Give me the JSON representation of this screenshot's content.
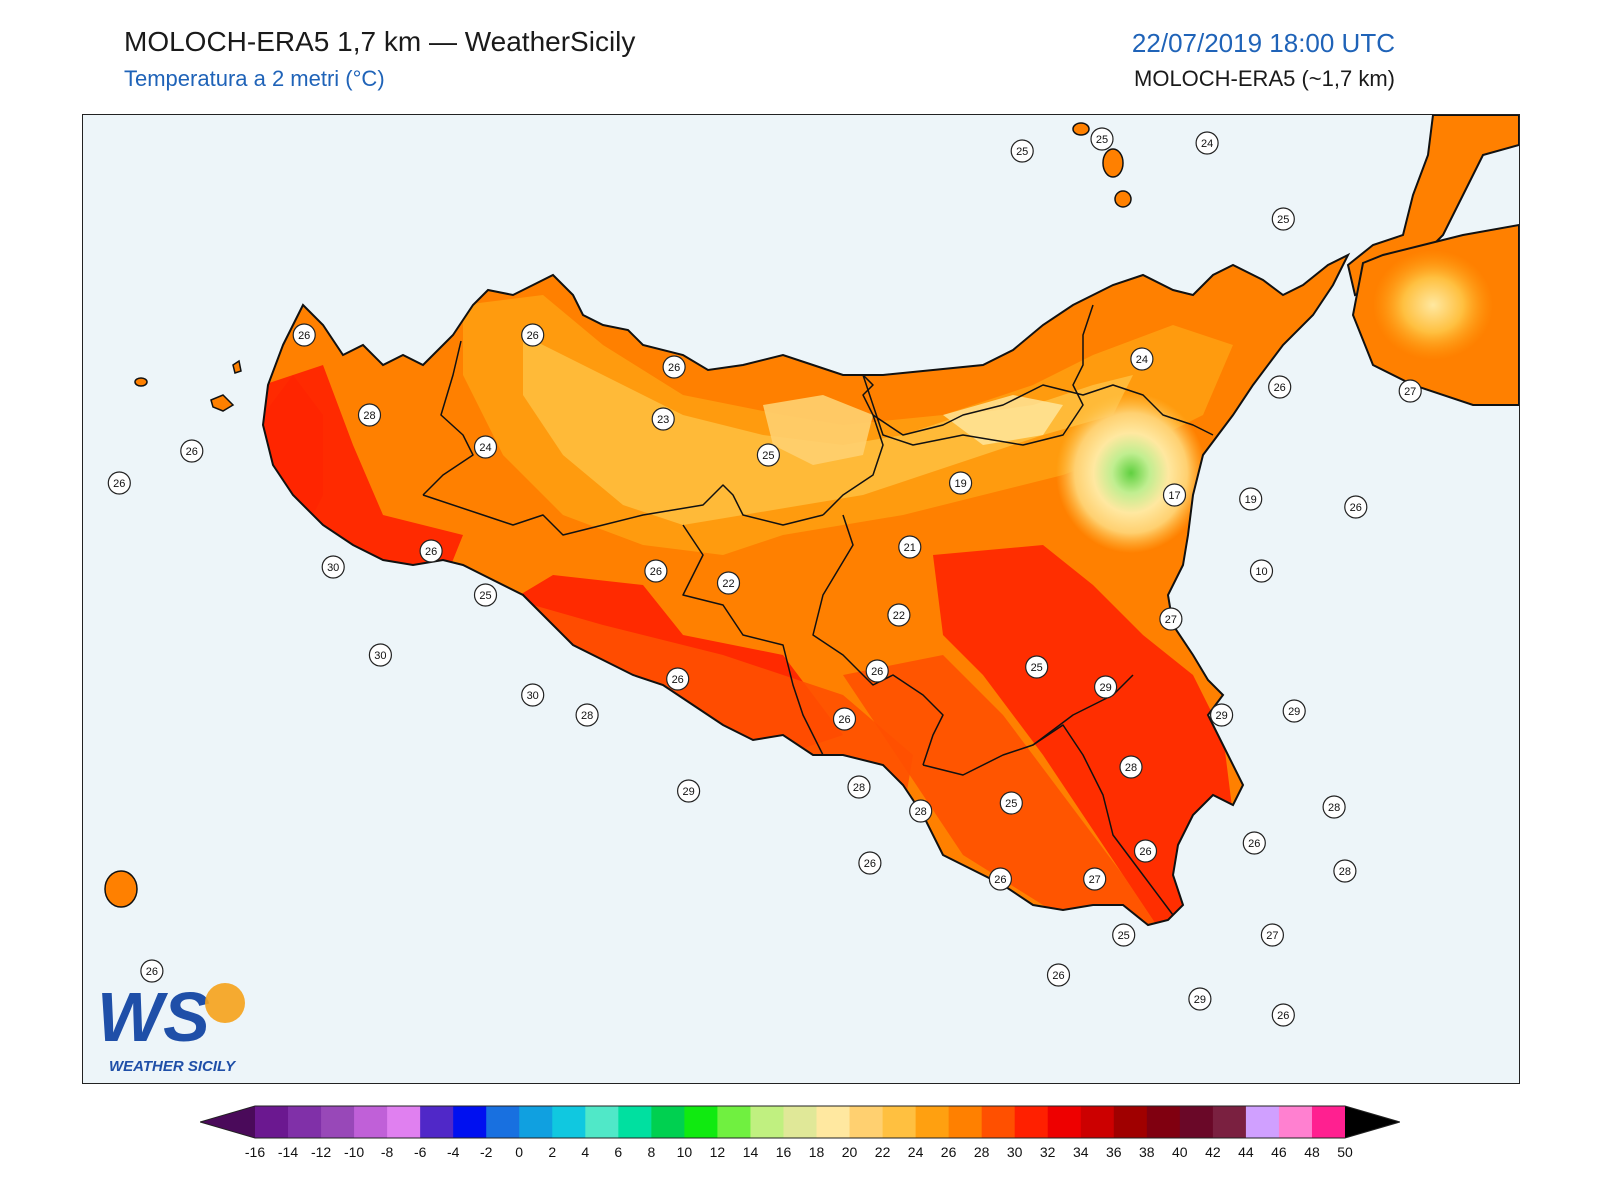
{
  "header": {
    "title": "MOLOCH-ERA5 1,7 km — WeatherSicily",
    "subtitle": "Temperatura a 2 metri (°C)",
    "datetime": "22/07/2019 18:00 UTC",
    "model": "MOLOCH-ERA5 (~1,7 km)"
  },
  "logo": {
    "letters": "WS",
    "text": "WEATHER SICILY"
  },
  "colorbar": {
    "labels": [
      "-16",
      "-14",
      "-12",
      "-10",
      "-8",
      "-6",
      "-4",
      "-2",
      "0",
      "2",
      "4",
      "6",
      "8",
      "10",
      "12",
      "14",
      "16",
      "18",
      "20",
      "22",
      "24",
      "26",
      "28",
      "30",
      "32",
      "34",
      "36",
      "38",
      "40",
      "42",
      "44",
      "46",
      "48",
      "50"
    ],
    "colors": [
      "#4a0a5a",
      "#6b1890",
      "#8030a8",
      "#9848b8",
      "#c060d8",
      "#e080f0",
      "#5028c8",
      "#0010f0",
      "#1870e0",
      "#10a0e0",
      "#10c8e0",
      "#50e8c8",
      "#00e0a0",
      "#00d050",
      "#10ea10",
      "#70f040",
      "#c0f080",
      "#e0e898",
      "#ffe8a0",
      "#ffd070",
      "#ffc040",
      "#ffa010",
      "#ff8000",
      "#ff5000",
      "#ff2000",
      "#ee0000",
      "#cc0000",
      "#a00000",
      "#800010",
      "#6a0828",
      "#7a2040",
      "#d0a0ff",
      "#ff80d0",
      "#ff2090",
      "#808080",
      "#404040"
    ]
  },
  "stations": [
    {
      "value": "25",
      "lon": 14.35,
      "lat": 38.78
    },
    {
      "value": "25",
      "lon": 14.57,
      "lat": 38.81
    },
    {
      "value": "24",
      "lon": 14.86,
      "lat": 38.8
    },
    {
      "value": "25",
      "lon": 15.07,
      "lat": 38.61
    },
    {
      "value": "26",
      "lon": 12.37,
      "lat": 38.32
    },
    {
      "value": "26",
      "lon": 13.0,
      "lat": 38.32
    },
    {
      "value": "26",
      "lon": 13.39,
      "lat": 38.24
    },
    {
      "value": "26",
      "lon": 12.06,
      "lat": 38.03
    },
    {
      "value": "28",
      "lon": 12.55,
      "lat": 38.12
    },
    {
      "value": "24",
      "lon": 12.87,
      "lat": 38.04
    },
    {
      "value": "26",
      "lon": 11.86,
      "lat": 37.95
    },
    {
      "value": "23",
      "lon": 13.36,
      "lat": 38.11
    },
    {
      "value": "25",
      "lon": 13.65,
      "lat": 38.02
    },
    {
      "value": "19",
      "lon": 14.18,
      "lat": 37.95
    },
    {
      "value": "24",
      "lon": 14.68,
      "lat": 38.26
    },
    {
      "value": "26",
      "lon": 15.06,
      "lat": 38.19
    },
    {
      "value": "27",
      "lon": 15.42,
      "lat": 38.18
    },
    {
      "value": "17",
      "lon": 14.77,
      "lat": 37.92
    },
    {
      "value": "19",
      "lon": 14.98,
      "lat": 37.91
    },
    {
      "value": "26",
      "lon": 12.72,
      "lat": 37.78
    },
    {
      "value": "26",
      "lon": 13.34,
      "lat": 37.73
    },
    {
      "value": "22",
      "lon": 13.54,
      "lat": 37.7
    },
    {
      "value": "21",
      "lon": 14.04,
      "lat": 37.79
    },
    {
      "value": "26",
      "lon": 15.27,
      "lat": 37.89
    },
    {
      "value": "10",
      "lon": 15.01,
      "lat": 37.73
    },
    {
      "value": "30",
      "lon": 12.45,
      "lat": 37.74
    },
    {
      "value": "25",
      "lon": 12.87,
      "lat": 37.67
    },
    {
      "value": "22",
      "lon": 14.01,
      "lat": 37.62
    },
    {
      "value": "27",
      "lon": 14.76,
      "lat": 37.61
    },
    {
      "value": "30",
      "lon": 12.58,
      "lat": 37.52
    },
    {
      "value": "30",
      "lon": 13.0,
      "lat": 37.42
    },
    {
      "value": "26",
      "lon": 13.4,
      "lat": 37.46
    },
    {
      "value": "26",
      "lon": 13.95,
      "lat": 37.48
    },
    {
      "value": "25",
      "lon": 14.39,
      "lat": 37.49
    },
    {
      "value": "29",
      "lon": 14.58,
      "lat": 37.44
    },
    {
      "value": "29",
      "lon": 14.9,
      "lat": 37.37
    },
    {
      "value": "29",
      "lon": 15.1,
      "lat": 37.38
    },
    {
      "value": "28",
      "lon": 13.15,
      "lat": 37.37
    },
    {
      "value": "26",
      "lon": 13.86,
      "lat": 37.36
    },
    {
      "value": "28",
      "lon": 14.65,
      "lat": 37.24
    },
    {
      "value": "29",
      "lon": 13.43,
      "lat": 37.18
    },
    {
      "value": "28",
      "lon": 13.9,
      "lat": 37.19
    },
    {
      "value": "28",
      "lon": 14.07,
      "lat": 37.13
    },
    {
      "value": "25",
      "lon": 14.32,
      "lat": 37.15
    },
    {
      "value": "28",
      "lon": 15.21,
      "lat": 37.14
    },
    {
      "value": "26",
      "lon": 14.99,
      "lat": 37.05
    },
    {
      "value": "26",
      "lon": 14.69,
      "lat": 37.03
    },
    {
      "value": "26",
      "lon": 13.93,
      "lat": 37.0
    },
    {
      "value": "26",
      "lon": 14.29,
      "lat": 36.96
    },
    {
      "value": "27",
      "lon": 14.55,
      "lat": 36.96
    },
    {
      "value": "28",
      "lon": 15.24,
      "lat": 36.98
    },
    {
      "value": "25",
      "lon": 14.63,
      "lat": 36.82
    },
    {
      "value": "27",
      "lon": 15.04,
      "lat": 36.82
    },
    {
      "value": "26",
      "lon": 14.45,
      "lat": 36.72
    },
    {
      "value": "29",
      "lon": 14.84,
      "lat": 36.66
    },
    {
      "value": "26",
      "lon": 15.07,
      "lat": 36.62
    },
    {
      "value": "26",
      "lon": 11.95,
      "lat": 36.73
    }
  ]
}
